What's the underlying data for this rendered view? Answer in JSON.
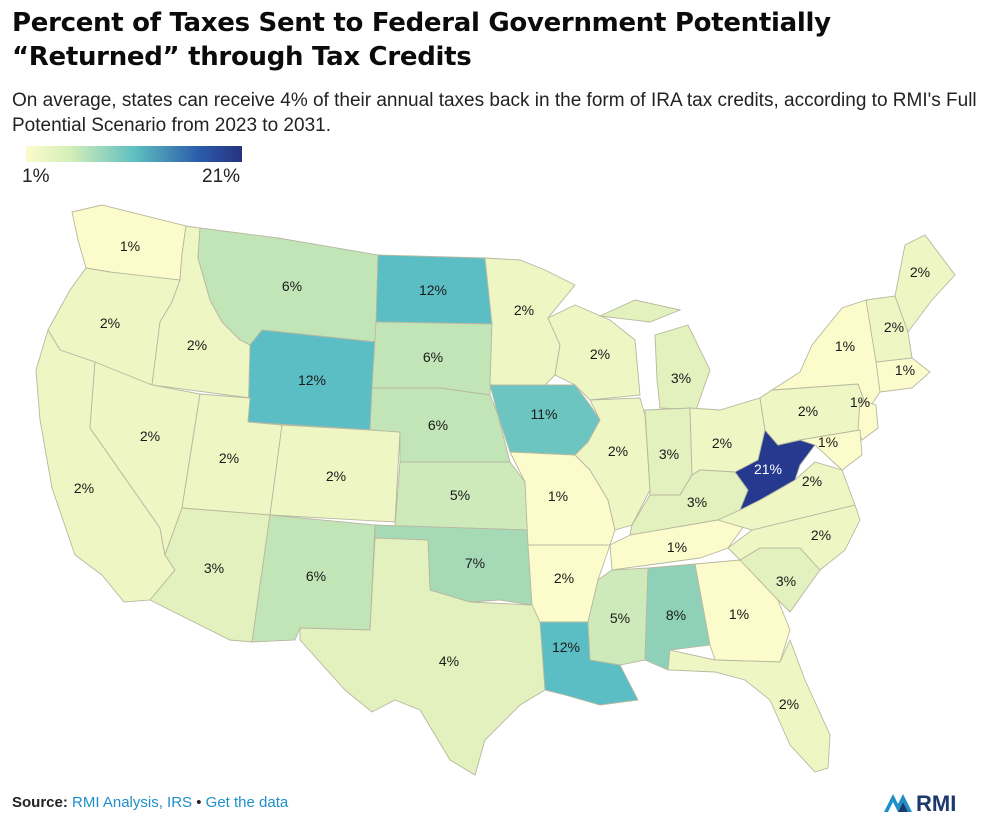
{
  "title": "Percent of Taxes Sent to Federal Government Potentially “Returned” through Tax Credits",
  "subtitle": "On average, states can receive 4% of their annual taxes back in the form of IRA tax credits, according to RMI's Full Potential Scenario from 2023 to 2031.",
  "legend": {
    "min_label": "1%",
    "max_label": "21%",
    "min_value": 1,
    "max_value": 21
  },
  "states": {
    "WA": {
      "label": "1%",
      "value": 1
    },
    "OR": {
      "label": "2%",
      "value": 2
    },
    "CA": {
      "label": "2%",
      "value": 2
    },
    "ID": {
      "label": "2%",
      "value": 2
    },
    "NV": {
      "label": "2%",
      "value": 2
    },
    "MT": {
      "label": "6%",
      "value": 6
    },
    "WY": {
      "label": "12%",
      "value": 12
    },
    "UT": {
      "label": "2%",
      "value": 2
    },
    "AZ": {
      "label": "3%",
      "value": 3
    },
    "CO": {
      "label": "2%",
      "value": 2
    },
    "NM": {
      "label": "6%",
      "value": 6
    },
    "ND": {
      "label": "12%",
      "value": 12
    },
    "SD": {
      "label": "6%",
      "value": 6
    },
    "NE": {
      "label": "6%",
      "value": 6
    },
    "KS": {
      "label": "5%",
      "value": 5
    },
    "OK": {
      "label": "7%",
      "value": 7
    },
    "TX": {
      "label": "4%",
      "value": 4
    },
    "MN": {
      "label": "2%",
      "value": 2
    },
    "IA": {
      "label": "11%",
      "value": 11
    },
    "MO": {
      "label": "1%",
      "value": 1
    },
    "AR": {
      "label": "2%",
      "value": 2
    },
    "LA": {
      "label": "12%",
      "value": 12
    },
    "WI": {
      "label": "2%",
      "value": 2
    },
    "IL": {
      "label": "2%",
      "value": 2
    },
    "MI": {
      "label": "3%",
      "value": 3
    },
    "IN": {
      "label": "3%",
      "value": 3
    },
    "OH": {
      "label": "2%",
      "value": 2
    },
    "KY": {
      "label": "3%",
      "value": 3
    },
    "TN": {
      "label": "1%",
      "value": 1
    },
    "MS": {
      "label": "5%",
      "value": 5
    },
    "AL": {
      "label": "8%",
      "value": 8
    },
    "GA": {
      "label": "1%",
      "value": 1
    },
    "FL": {
      "label": "2%",
      "value": 2
    },
    "SC": {
      "label": "3%",
      "value": 3
    },
    "NC": {
      "label": "2%",
      "value": 2
    },
    "VA": {
      "label": "2%",
      "value": 2
    },
    "WV": {
      "label": "21%",
      "value": 21
    },
    "PA": {
      "label": "2%",
      "value": 2
    },
    "NY": {
      "label": "1%",
      "value": 1
    },
    "MD": {
      "label": "1%",
      "value": 1
    },
    "NJ": {
      "label": "1%",
      "value": 1
    },
    "NEW_ENGLAND": {
      "label": "1%",
      "value": 1
    },
    "VT_NH": {
      "label": "2%",
      "value": 2
    },
    "ME": {
      "label": "2%",
      "value": 2
    }
  },
  "colors": {
    "c1": "#fbfbcb",
    "c2": "#eef6c4",
    "c3": "#e2f1bd",
    "c5": "#cfeaba",
    "c6": "#c2e5b8",
    "c7": "#a6dab7",
    "c8": "#8fd1b8",
    "c11": "#6cc5c0",
    "c12": "#5bbec4",
    "c21": "#253a8f"
  },
  "footer": {
    "source_label": "Source:",
    "source_link": "RMI Analysis, IRS",
    "separator": "•",
    "data_link": "Get the data"
  },
  "logo": {
    "text": "RMI"
  }
}
